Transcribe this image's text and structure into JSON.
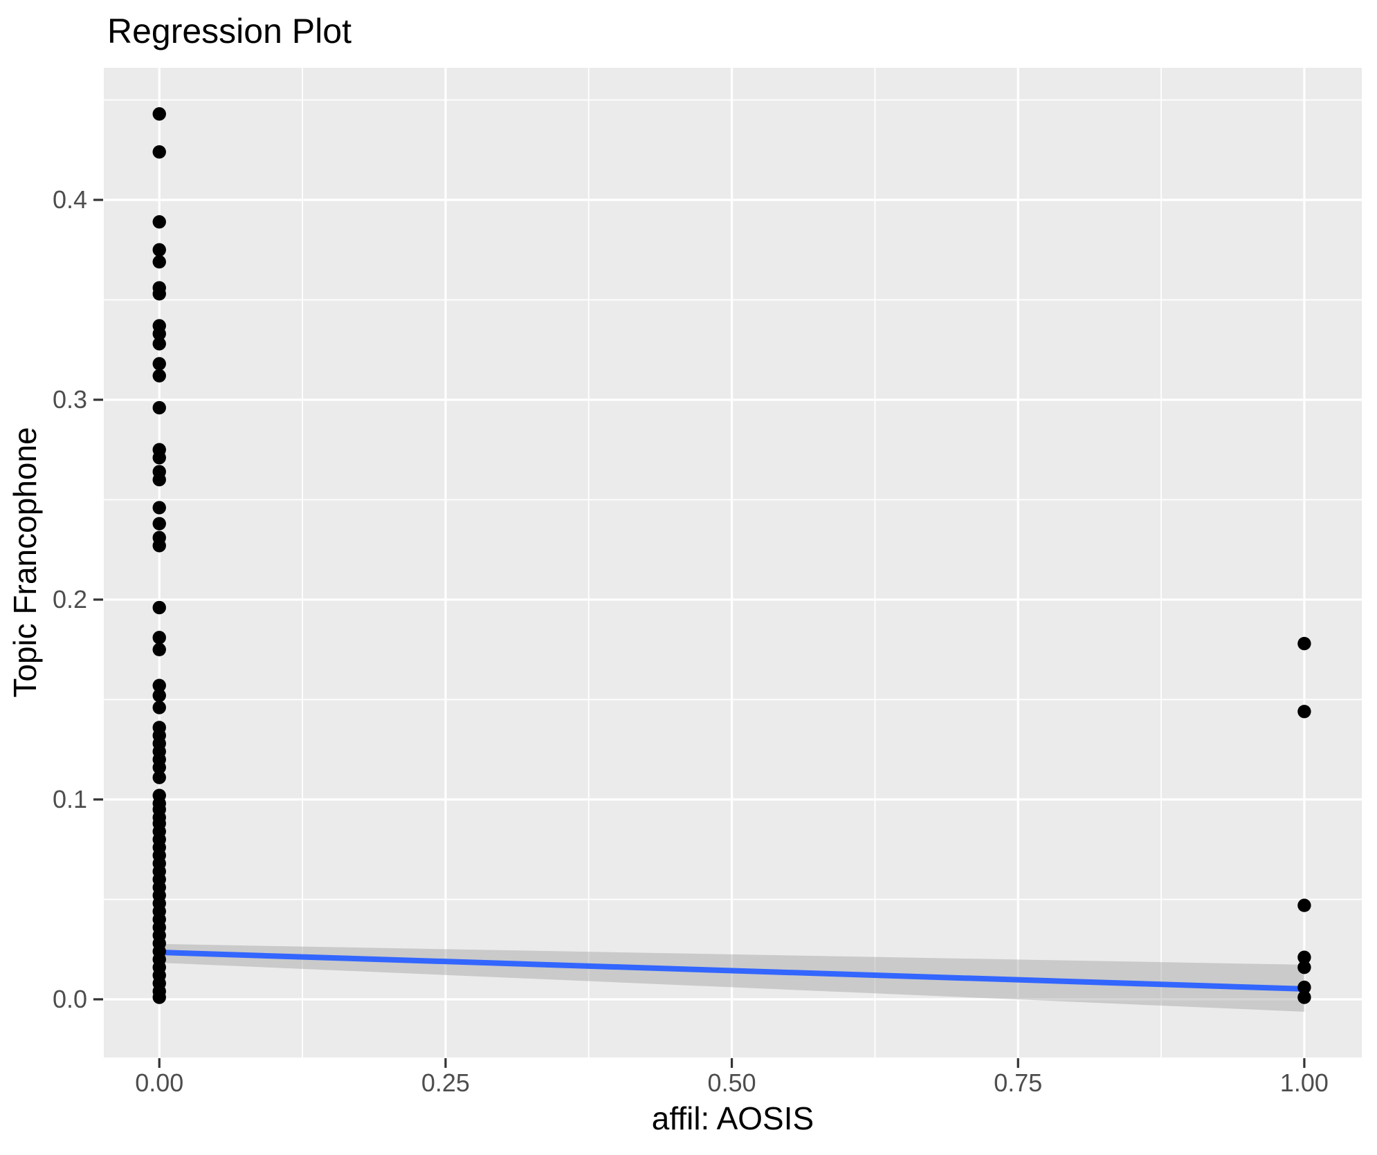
{
  "title": "Regression Plot",
  "chart_data": {
    "type": "scatter",
    "title": "Regression Plot",
    "xlabel": "affil: AOSIS",
    "ylabel": "Topic Francophone",
    "xlim": [
      -0.0485,
      1.0502
    ],
    "ylim": [
      -0.0291,
      0.4661
    ],
    "x_major_ticks": [
      0.0,
      0.25,
      0.5,
      0.75,
      1.0
    ],
    "x_tick_labels": [
      "0.00",
      "0.25",
      "0.50",
      "0.75",
      "1.00"
    ],
    "x_minor_ticks": [
      0.125,
      0.375,
      0.625,
      0.875
    ],
    "y_major_ticks": [
      0.0,
      0.1,
      0.2,
      0.3,
      0.4
    ],
    "y_tick_labels": [
      "0.0",
      "0.1",
      "0.2",
      "0.3",
      "0.4"
    ],
    "y_minor_ticks": [
      0.05,
      0.15,
      0.25,
      0.35,
      0.45
    ],
    "grid": "white major+minor gridlines on gray panel",
    "legend_position": "none",
    "series": [
      {
        "name": "observations affil=0",
        "x_value": 0,
        "y_values": [
          0.443,
          0.424,
          0.389,
          0.375,
          0.369,
          0.356,
          0.353,
          0.337,
          0.333,
          0.328,
          0.318,
          0.312,
          0.296,
          0.275,
          0.271,
          0.264,
          0.26,
          0.246,
          0.238,
          0.231,
          0.227,
          0.196,
          0.181,
          0.175,
          0.157,
          0.152,
          0.146,
          0.136,
          0.132,
          0.128,
          0.124,
          0.12,
          0.116,
          0.111,
          0.102,
          0.098,
          0.095,
          0.091,
          0.088,
          0.084,
          0.08,
          0.076,
          0.072,
          0.068,
          0.064,
          0.06,
          0.056,
          0.052,
          0.048,
          0.044,
          0.04,
          0.036,
          0.032,
          0.028,
          0.024,
          0.02,
          0.016,
          0.012,
          0.008,
          0.004,
          0.001
        ]
      },
      {
        "name": "observations affil=1",
        "x_value": 1,
        "y_values": [
          0.178,
          0.144,
          0.047,
          0.021,
          0.016,
          0.006,
          0.001
        ]
      }
    ],
    "regression_line": {
      "x": [
        0,
        1
      ],
      "y": [
        0.0235,
        0.0052
      ]
    },
    "confidence_band": {
      "x": [
        0,
        1
      ],
      "upper": [
        0.0277,
        0.0173
      ],
      "lower": [
        0.0183,
        -0.0062
      ]
    },
    "point_radius_px": 9.7,
    "colors": {
      "panel_background": "#EBEBEB",
      "gridline": "#FFFFFF",
      "point": "#000000",
      "regression_line": "#3366FF",
      "confidence_band": "rgba(153,153,153,0.4)",
      "tick_label": "#4D4D4D",
      "tick_mark": "#333333",
      "title": "#000000",
      "axis_title": "#000000"
    }
  }
}
